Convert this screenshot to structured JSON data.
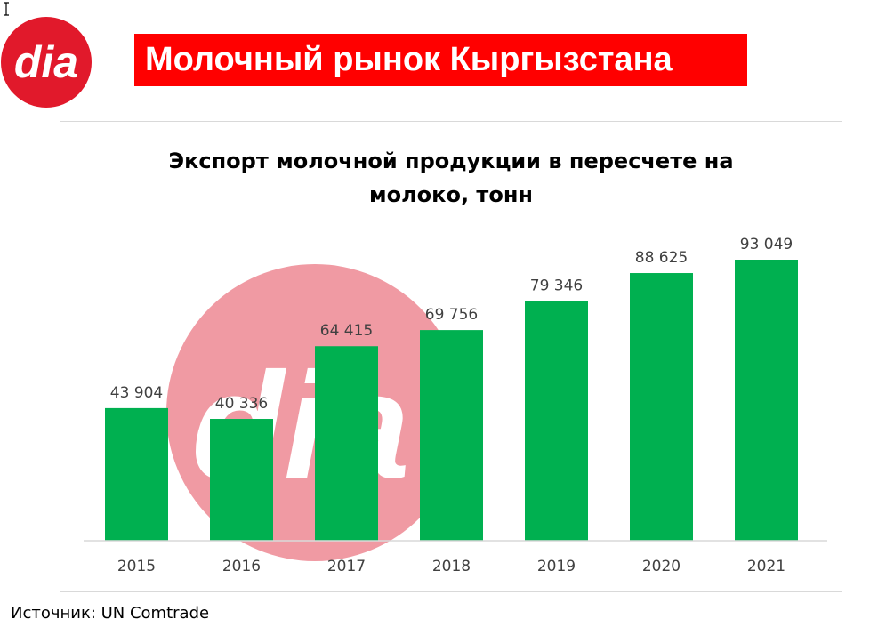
{
  "header": {
    "logo_text": "dia",
    "title": "Молочный рынок Кыргызстана"
  },
  "footer": {
    "source": "Источник: UN Comtrade"
  },
  "colors": {
    "brand_red": "#e1192b",
    "banner_red": "#ff0000",
    "bar_green": "#00b050",
    "watermark_pink": "#f09aa3"
  },
  "chart_data": {
    "type": "bar",
    "title_line1": "Экспорт молочной продукции в пересчете на",
    "title_line2": "молоко, тонн",
    "categories": [
      "2015",
      "2016",
      "2017",
      "2018",
      "2019",
      "2020",
      "2021"
    ],
    "values": [
      43904,
      40336,
      64415,
      69756,
      79346,
      88625,
      93049
    ],
    "value_labels": [
      "43 904",
      "40 336",
      "64 415",
      "69 756",
      "79 346",
      "88 625",
      "93 049"
    ],
    "xlabel": "",
    "ylabel": "",
    "ylim": [
      0,
      93049
    ],
    "grid": false,
    "legend": "none",
    "watermark": "dia"
  }
}
